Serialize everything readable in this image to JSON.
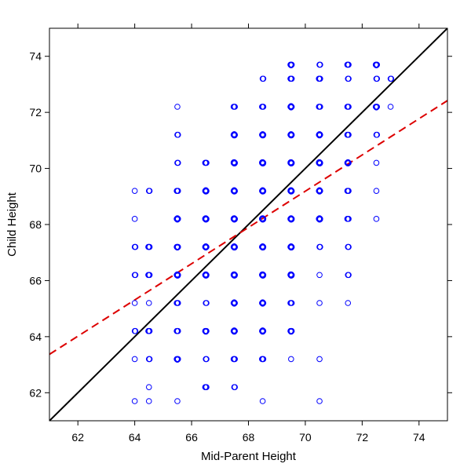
{
  "chart_data": {
    "type": "scatter",
    "title": "",
    "xlabel": "Mid-Parent Height",
    "ylabel": "Child Height",
    "xlim": [
      61,
      75
    ],
    "ylim": [
      61,
      75
    ],
    "x_ticks": [
      "62",
      "64",
      "66",
      "68",
      "70",
      "72",
      "74"
    ],
    "y_ticks": [
      "62",
      "64",
      "66",
      "68",
      "70",
      "72",
      "74"
    ],
    "grid": false,
    "colors": {
      "points": "#0000ff",
      "identity_line": "#000000",
      "regression_line": "#dd0000"
    },
    "lines": [
      {
        "style": "solid",
        "points": [
          [
            61,
            61
          ],
          [
            75,
            75
          ]
        ]
      },
      {
        "style": "dashed",
        "points": [
          [
            61,
            63.37
          ],
          [
            75,
            72.42
          ]
        ]
      }
    ],
    "points": [
      [
        64,
        61.7,
        1
      ],
      [
        64.5,
        61.7,
        1
      ],
      [
        65.5,
        61.7,
        1
      ],
      [
        68.5,
        61.7,
        1
      ],
      [
        70.5,
        61.7,
        1
      ],
      [
        64.5,
        62.2,
        1
      ],
      [
        66.5,
        62.2,
        3
      ],
      [
        67.5,
        62.2,
        2
      ],
      [
        64,
        63.2,
        1
      ],
      [
        64.5,
        63.2,
        2
      ],
      [
        65.5,
        63.2,
        4
      ],
      [
        66.5,
        63.2,
        2
      ],
      [
        67.5,
        63.2,
        3
      ],
      [
        68.5,
        63.2,
        3
      ],
      [
        69.5,
        63.2,
        1
      ],
      [
        70.5,
        63.2,
        1
      ],
      [
        64,
        64.2,
        2
      ],
      [
        64.5,
        64.2,
        3
      ],
      [
        65.5,
        64.2,
        3
      ],
      [
        66.5,
        64.2,
        4
      ],
      [
        67.5,
        64.2,
        5
      ],
      [
        68.5,
        64.2,
        5
      ],
      [
        69.5,
        64.2,
        4
      ],
      [
        64,
        65.2,
        1
      ],
      [
        64.5,
        65.2,
        1
      ],
      [
        65.5,
        65.2,
        3
      ],
      [
        66.5,
        65.2,
        2
      ],
      [
        67.5,
        65.2,
        5
      ],
      [
        68.5,
        65.2,
        5
      ],
      [
        69.5,
        65.2,
        3
      ],
      [
        70.5,
        65.2,
        1
      ],
      [
        71.5,
        65.2,
        1
      ],
      [
        64,
        66.2,
        2
      ],
      [
        64.5,
        66.2,
        3
      ],
      [
        65.5,
        66.2,
        6
      ],
      [
        66.5,
        66.2,
        6
      ],
      [
        67.5,
        66.2,
        7
      ],
      [
        68.5,
        66.2,
        7
      ],
      [
        69.5,
        66.2,
        7
      ],
      [
        70.5,
        66.2,
        1
      ],
      [
        71.5,
        66.2,
        2
      ],
      [
        64,
        67.2,
        2
      ],
      [
        64.5,
        67.2,
        3
      ],
      [
        65.5,
        67.2,
        4
      ],
      [
        66.5,
        67.2,
        5
      ],
      [
        67.5,
        67.2,
        6
      ],
      [
        68.5,
        67.2,
        6
      ],
      [
        69.5,
        67.2,
        6
      ],
      [
        70.5,
        67.2,
        2
      ],
      [
        71.5,
        67.2,
        2
      ],
      [
        64,
        68.2,
        1
      ],
      [
        65.5,
        68.2,
        5
      ],
      [
        66.5,
        68.2,
        7
      ],
      [
        67.5,
        68.2,
        7
      ],
      [
        68.5,
        68.2,
        7
      ],
      [
        69.5,
        68.2,
        6
      ],
      [
        70.5,
        68.2,
        6
      ],
      [
        71.5,
        68.2,
        3
      ],
      [
        72.5,
        68.2,
        1
      ],
      [
        64,
        69.2,
        1
      ],
      [
        64.5,
        69.2,
        2
      ],
      [
        65.5,
        69.2,
        3
      ],
      [
        66.5,
        69.2,
        6
      ],
      [
        67.5,
        69.2,
        6
      ],
      [
        68.5,
        69.2,
        6
      ],
      [
        69.5,
        69.2,
        7
      ],
      [
        70.5,
        69.2,
        5
      ],
      [
        71.5,
        69.2,
        3
      ],
      [
        72.5,
        69.2,
        1
      ],
      [
        65.5,
        70.2,
        2
      ],
      [
        66.5,
        70.2,
        3
      ],
      [
        67.5,
        70.2,
        7
      ],
      [
        68.5,
        70.2,
        7
      ],
      [
        69.5,
        70.2,
        7
      ],
      [
        70.5,
        70.2,
        7
      ],
      [
        71.5,
        70.2,
        5
      ],
      [
        72.5,
        70.2,
        1
      ],
      [
        65.5,
        71.2,
        2
      ],
      [
        67.5,
        71.2,
        6
      ],
      [
        68.5,
        71.2,
        6
      ],
      [
        69.5,
        71.2,
        6
      ],
      [
        70.5,
        71.2,
        5
      ],
      [
        71.5,
        71.2,
        3
      ],
      [
        72.5,
        71.2,
        2
      ],
      [
        65.5,
        72.2,
        1
      ],
      [
        67.5,
        72.2,
        3
      ],
      [
        68.5,
        72.2,
        3
      ],
      [
        69.5,
        72.2,
        5
      ],
      [
        70.5,
        72.2,
        3
      ],
      [
        71.5,
        72.2,
        3
      ],
      [
        72.5,
        72.2,
        4
      ],
      [
        73,
        72.2,
        1
      ],
      [
        68.5,
        73.2,
        2
      ],
      [
        69.5,
        73.2,
        3
      ],
      [
        70.5,
        73.2,
        3
      ],
      [
        71.5,
        73.2,
        2
      ],
      [
        72.5,
        73.2,
        2
      ],
      [
        73,
        73.2,
        2
      ],
      [
        69.5,
        73.7,
        4
      ],
      [
        70.5,
        73.7,
        2
      ],
      [
        71.5,
        73.7,
        3
      ],
      [
        72.5,
        73.7,
        4
      ]
    ]
  }
}
